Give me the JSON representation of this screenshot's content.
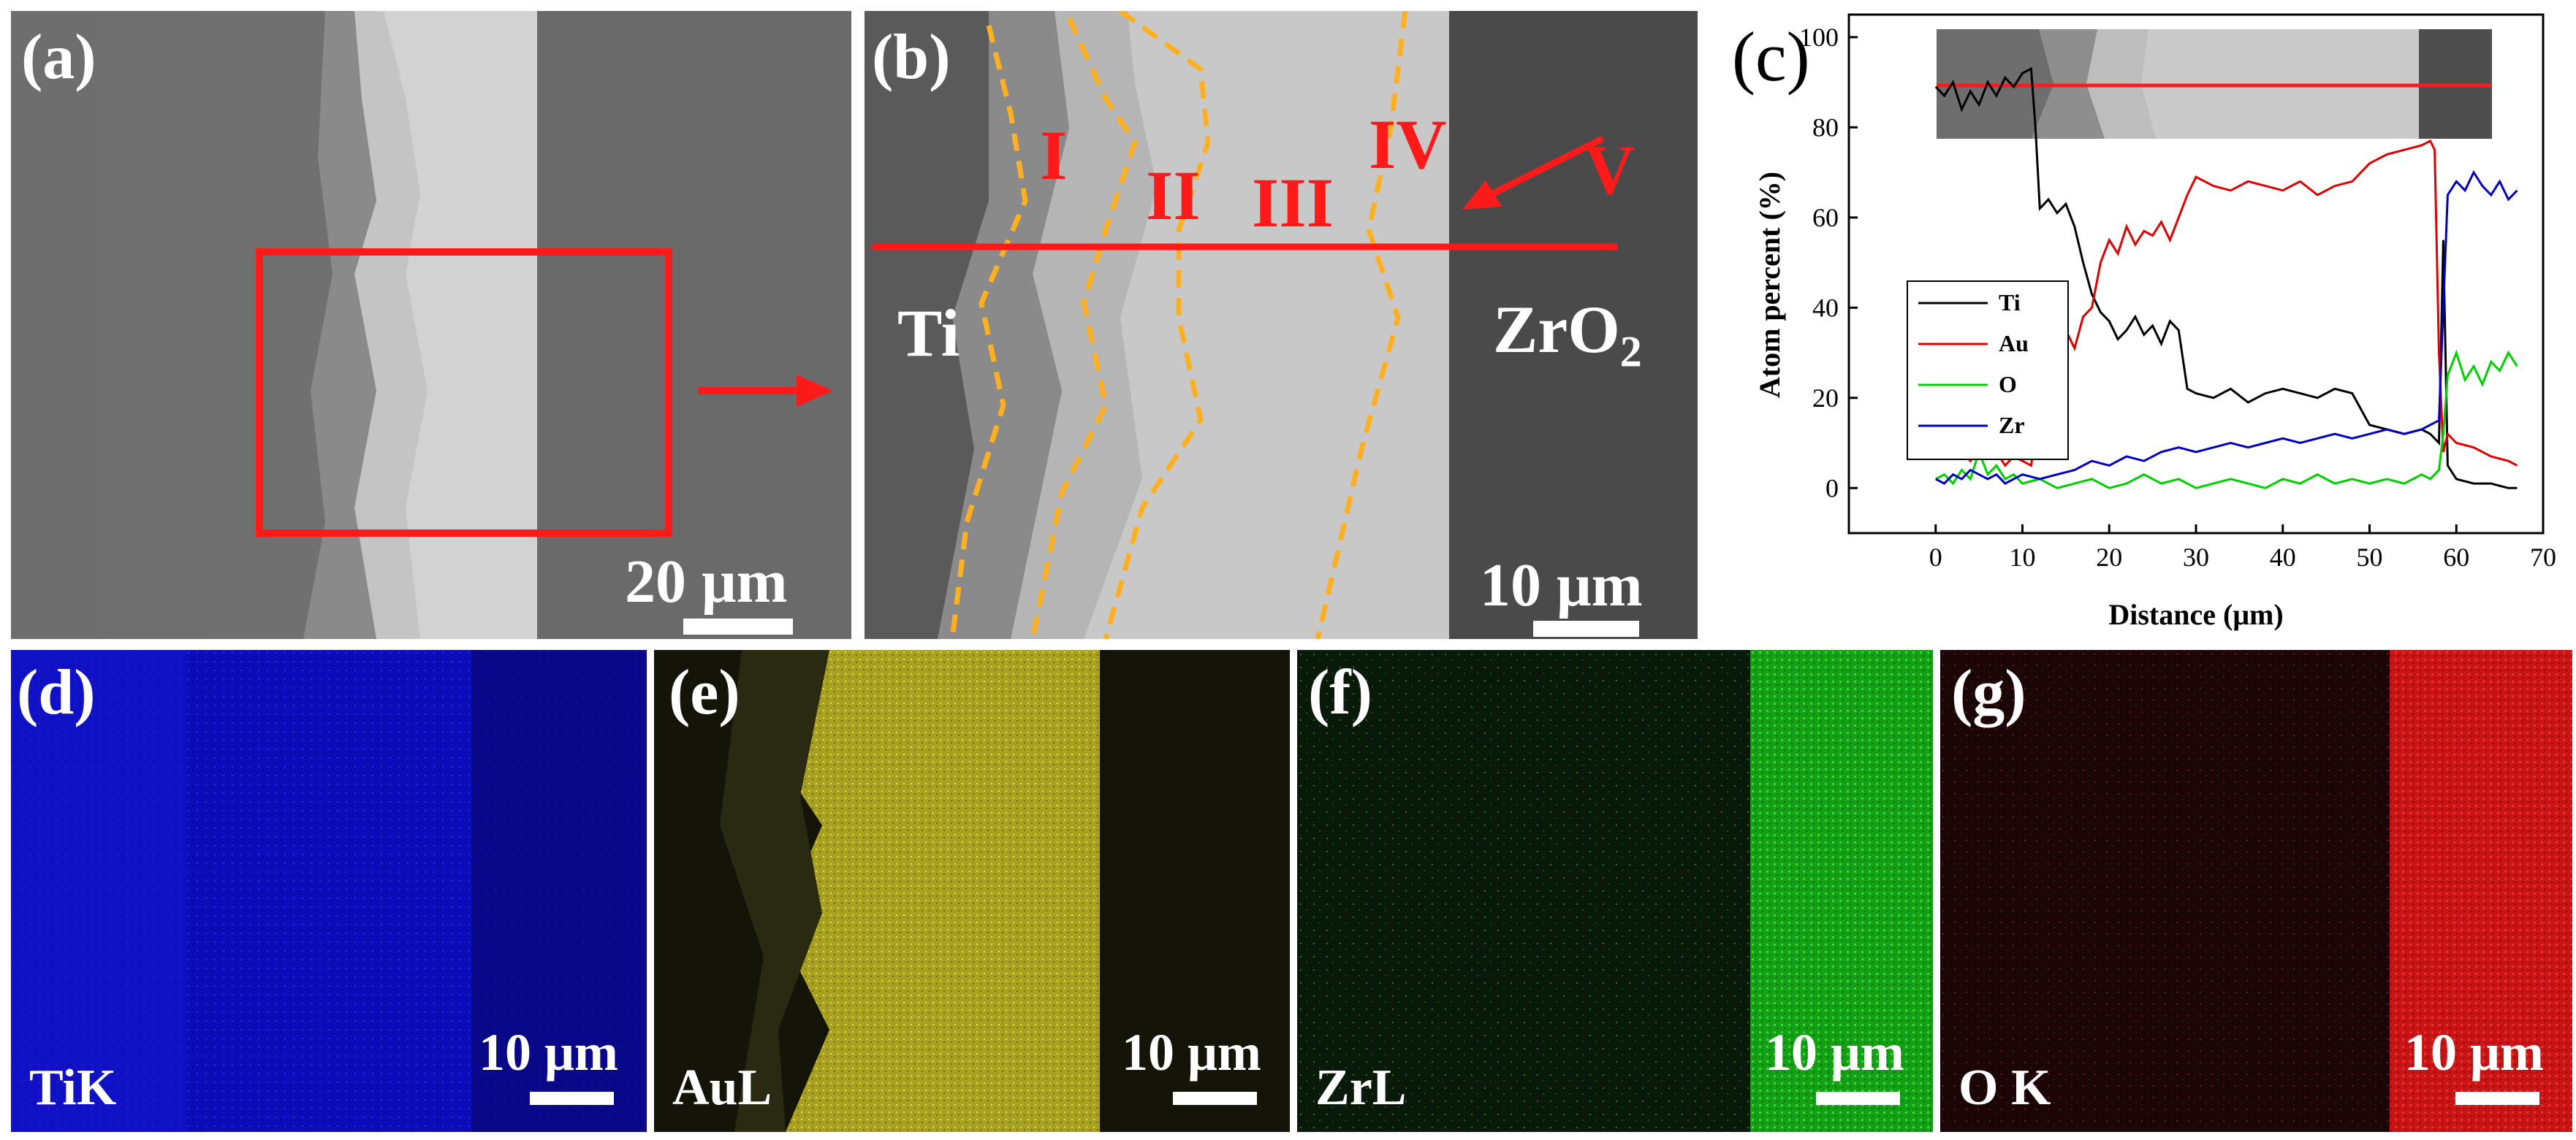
{
  "panels": {
    "a": {
      "label": "(a)",
      "scale": "20 μm"
    },
    "b": {
      "label": "(b)",
      "scale": "10 μm",
      "regions": [
        "I",
        "II",
        "III",
        "IV",
        "V"
      ],
      "left_material": "Ti",
      "right_material_base": "ZrO",
      "right_material_sub": "2"
    },
    "c": {
      "label": "(c)"
    },
    "d": {
      "label": "(d)",
      "element": "TiK",
      "scale": "10 μm",
      "color": "#1010c8"
    },
    "e": {
      "label": "(e)",
      "element": "AuL",
      "scale": "10 μm",
      "color": "#c8c020"
    },
    "f": {
      "label": "(f)",
      "element": "ZrL",
      "scale": "10 μm",
      "color": "#18b818"
    },
    "g": {
      "label": "(g)",
      "element": "O K",
      "scale": "10 μm",
      "color": "#d81818"
    }
  },
  "colors": {
    "annotation_red": "#ff1a1a",
    "boundary_dashed": "#ffb020"
  },
  "chart_data": {
    "type": "line",
    "xlabel": "Distance (μm)",
    "ylabel": "Atom percent (%)",
    "xlim": [
      -10,
      70
    ],
    "ylim": [
      -10,
      105
    ],
    "xticks": [
      0,
      10,
      20,
      30,
      40,
      50,
      60,
      70
    ],
    "yticks": [
      0,
      20,
      40,
      60,
      80,
      100
    ],
    "legend_position": "left",
    "series": [
      {
        "name": "Ti",
        "color": "#000000",
        "x": [
          0,
          1,
          2,
          3,
          4,
          5,
          6,
          7,
          8,
          9,
          10,
          11,
          11.5,
          12,
          13,
          14,
          15,
          16,
          17,
          18,
          19,
          20,
          21,
          22,
          23,
          24,
          25,
          26,
          27,
          28,
          29,
          30,
          32,
          34,
          36,
          38,
          40,
          42,
          44,
          46,
          48,
          50,
          52,
          54,
          56,
          57,
          58,
          58.5,
          59,
          60,
          62,
          64,
          66,
          67
        ],
        "y": [
          89,
          87,
          90,
          84,
          88,
          85,
          90,
          87,
          91,
          89,
          92,
          93,
          80,
          62,
          64,
          61,
          63,
          58,
          50,
          43,
          39,
          37,
          33,
          35,
          38,
          34,
          36,
          32,
          37,
          35,
          22,
          21,
          20,
          22,
          19,
          21,
          22,
          21,
          20,
          22,
          21,
          14,
          13,
          12,
          13,
          12,
          10,
          55,
          5,
          2,
          1,
          1,
          0,
          0
        ]
      },
      {
        "name": "Au",
        "color": "#e00000",
        "x": [
          0,
          1,
          2,
          3,
          4,
          5,
          6,
          7,
          8,
          9,
          10,
          11,
          12,
          13,
          14,
          15,
          16,
          17,
          18,
          19,
          20,
          21,
          22,
          23,
          24,
          25,
          26,
          27,
          28,
          29,
          30,
          32,
          34,
          36,
          38,
          40,
          42,
          44,
          46,
          48,
          50,
          52,
          54,
          56,
          57,
          57.5,
          58,
          58.5,
          59,
          60,
          62,
          64,
          66,
          67
        ],
        "y": [
          7,
          10,
          11,
          8,
          6,
          9,
          7,
          8,
          5,
          7,
          6,
          5,
          18,
          25,
          30,
          35,
          31,
          38,
          40,
          50,
          55,
          52,
          58,
          54,
          57,
          56,
          59,
          55,
          60,
          65,
          69,
          67,
          66,
          68,
          67,
          66,
          68,
          65,
          67,
          68,
          72,
          74,
          75,
          76,
          77,
          75,
          30,
          8,
          12,
          10,
          9,
          7,
          6,
          5
        ]
      },
      {
        "name": "O",
        "color": "#00d000",
        "x": [
          0,
          1,
          2,
          3,
          4,
          5,
          6,
          7,
          8,
          9,
          10,
          12,
          14,
          16,
          18,
          20,
          22,
          24,
          26,
          28,
          30,
          32,
          34,
          36,
          38,
          40,
          42,
          44,
          46,
          48,
          50,
          52,
          54,
          56,
          57,
          58,
          58.5,
          59,
          60,
          61,
          62,
          63,
          64,
          65,
          66,
          67
        ],
        "y": [
          2,
          3,
          1,
          4,
          2,
          8,
          3,
          5,
          2,
          3,
          1,
          2,
          0,
          1,
          2,
          0,
          1,
          3,
          1,
          2,
          0,
          1,
          2,
          1,
          0,
          2,
          1,
          3,
          1,
          2,
          1,
          2,
          1,
          3,
          2,
          4,
          12,
          25,
          30,
          24,
          27,
          23,
          28,
          26,
          30,
          27
        ]
      },
      {
        "name": "Zr",
        "color": "#0000c0",
        "x": [
          0,
          1,
          2,
          3,
          4,
          5,
          6,
          7,
          8,
          9,
          10,
          12,
          14,
          16,
          18,
          20,
          22,
          24,
          26,
          28,
          30,
          32,
          34,
          36,
          38,
          40,
          42,
          44,
          46,
          48,
          50,
          52,
          54,
          56,
          57,
          58,
          58.5,
          59,
          60,
          61,
          62,
          63,
          64,
          65,
          66,
          67
        ],
        "y": [
          2,
          1,
          3,
          2,
          4,
          3,
          2,
          3,
          1,
          2,
          3,
          2,
          3,
          4,
          6,
          5,
          7,
          6,
          8,
          9,
          8,
          9,
          10,
          9,
          10,
          11,
          10,
          11,
          12,
          11,
          12,
          13,
          12,
          13,
          14,
          15,
          40,
          65,
          68,
          66,
          70,
          67,
          65,
          68,
          64,
          66
        ]
      }
    ]
  }
}
